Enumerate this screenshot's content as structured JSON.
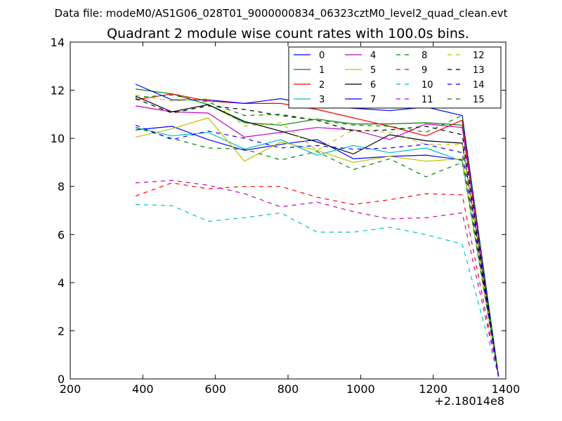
{
  "chart_data": {
    "type": "line",
    "suptitle": "Data file: modeM0/AS1G06_028T01_9000000834_06323cztM0_level2_quad_clean.evt",
    "title": "Quadrant 2 module wise count rates with 100.0s bins.",
    "xlim": [
      200,
      1400
    ],
    "ylim": [
      0,
      14
    ],
    "x_ticks": [
      200,
      400,
      600,
      800,
      1000,
      1200,
      1400
    ],
    "y_ticks": [
      0,
      2,
      4,
      6,
      8,
      10,
      12,
      14
    ],
    "x_offset_label": "+2.18014e8",
    "legend_position": "top-right",
    "x": [
      380,
      480,
      580,
      680,
      780,
      880,
      980,
      1080,
      1180,
      1280,
      1380
    ],
    "series": [
      {
        "name": "0",
        "color": "#0000ff",
        "dash": "solid",
        "values": [
          10.35,
          10.5,
          9.95,
          9.5,
          9.75,
          9.95,
          9.15,
          9.25,
          9.3,
          9.1,
          0.1
        ]
      },
      {
        "name": "1",
        "color": "#008000",
        "dash": "solid",
        "values": [
          12.05,
          11.85,
          11.4,
          10.65,
          10.55,
          10.8,
          10.6,
          10.6,
          10.65,
          10.55,
          0.1
        ]
      },
      {
        "name": "2",
        "color": "#ff0000",
        "dash": "solid",
        "values": [
          11.6,
          11.85,
          11.55,
          11.45,
          11.45,
          11.2,
          10.85,
          10.5,
          10.1,
          10.75,
          0.1
        ]
      },
      {
        "name": "3",
        "color": "#00bfbf",
        "dash": "solid",
        "values": [
          10.45,
          10.1,
          10.25,
          9.55,
          9.95,
          9.3,
          9.7,
          9.4,
          9.6,
          9.05,
          0.1
        ]
      },
      {
        "name": "4",
        "color": "#bf00bf",
        "dash": "solid",
        "values": [
          11.35,
          11.1,
          11.05,
          10.05,
          10.25,
          10.45,
          10.35,
          9.95,
          10.6,
          10.45,
          0.1
        ]
      },
      {
        "name": "5",
        "color": "#bfbf00",
        "dash": "solid",
        "values": [
          10.05,
          10.4,
          10.85,
          9.05,
          9.85,
          9.5,
          9.0,
          9.25,
          9.05,
          9.15,
          0.1
        ]
      },
      {
        "name": "6",
        "color": "#000000",
        "dash": "solid",
        "values": [
          11.75,
          11.1,
          11.4,
          10.7,
          10.3,
          9.85,
          9.35,
          10.15,
          9.9,
          9.8,
          0.1
        ]
      },
      {
        "name": "7",
        "color": "#0000ff",
        "dash": "solid",
        "values": [
          12.25,
          11.6,
          11.6,
          11.45,
          11.65,
          11.35,
          11.25,
          11.15,
          11.3,
          10.95,
          0.1
        ]
      },
      {
        "name": "8",
        "color": "#008000",
        "dash": "dashed",
        "values": [
          10.45,
          10.0,
          9.6,
          9.55,
          9.1,
          9.45,
          8.7,
          9.15,
          8.4,
          9.0,
          0.1
        ]
      },
      {
        "name": "9",
        "color": "#ff0000",
        "dash": "dashed",
        "values": [
          7.6,
          8.15,
          7.9,
          8.0,
          8.0,
          7.55,
          7.25,
          7.45,
          7.7,
          7.65,
          0.1
        ]
      },
      {
        "name": "10",
        "color": "#00bfbf",
        "dash": "dashed",
        "values": [
          7.25,
          7.2,
          6.55,
          6.7,
          6.9,
          6.1,
          6.1,
          6.3,
          6.0,
          5.6,
          0.1
        ]
      },
      {
        "name": "11",
        "color": "#bf00bf",
        "dash": "dashed",
        "values": [
          8.15,
          8.25,
          8.05,
          7.7,
          7.15,
          7.35,
          6.95,
          6.65,
          6.7,
          6.9,
          0.1
        ]
      },
      {
        "name": "12",
        "color": "#bfbf00",
        "dash": "dashed",
        "values": [
          11.8,
          11.55,
          11.65,
          10.5,
          10.65,
          9.5,
          10.35,
          10.25,
          9.75,
          9.75,
          0.1
        ]
      },
      {
        "name": "13",
        "color": "#000000",
        "dash": "dashed",
        "values": [
          11.65,
          11.05,
          11.35,
          11.2,
          10.95,
          10.75,
          10.3,
          10.35,
          10.5,
          10.15,
          0.1
        ]
      },
      {
        "name": "14",
        "color": "#0000ff",
        "dash": "dashed",
        "values": [
          10.55,
          9.95,
          10.3,
          10.0,
          9.6,
          9.7,
          9.55,
          9.6,
          9.75,
          9.4,
          0.1
        ]
      },
      {
        "name": "15",
        "color": "#008000",
        "dash": "dashed",
        "values": [
          11.7,
          11.8,
          11.5,
          10.95,
          11.0,
          10.75,
          10.55,
          10.5,
          10.25,
          10.95,
          0.1
        ]
      }
    ]
  }
}
